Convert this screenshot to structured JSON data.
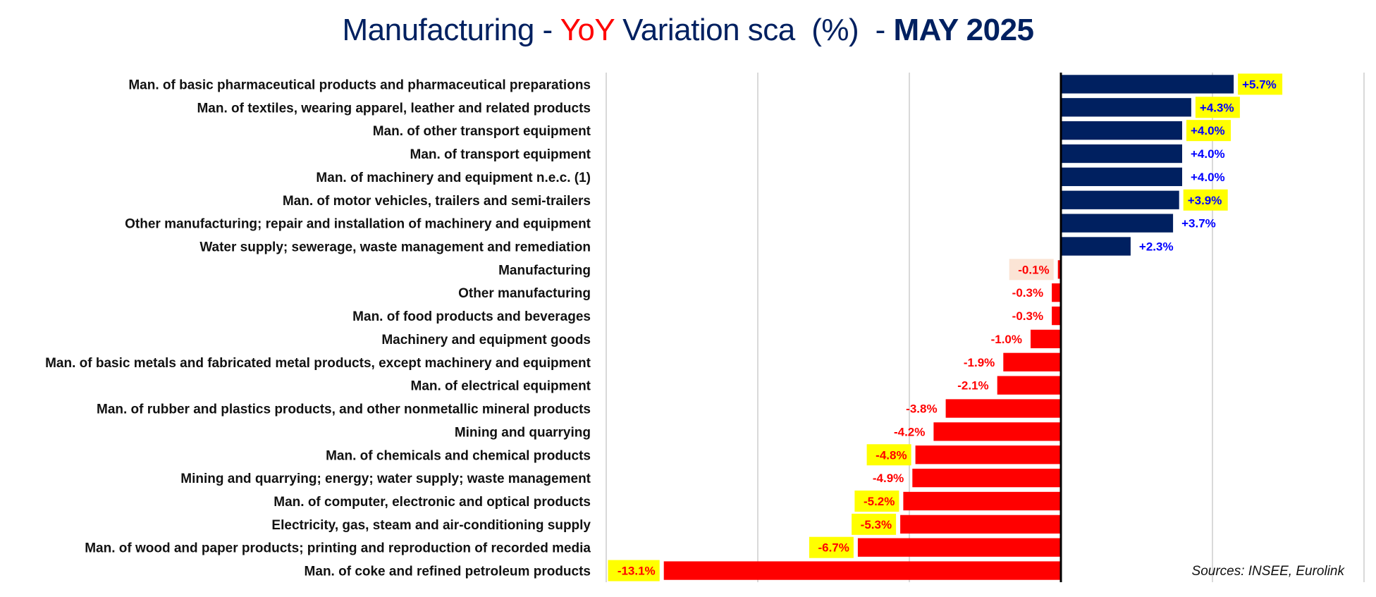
{
  "title": {
    "part1": "Manufacturing - ",
    "part2": "YoY",
    "part3": " Variation sca  (%)  - ",
    "part4": "MAY 2025"
  },
  "source": "Sources: INSEE, Eurolink",
  "colors": {
    "positive_bar": "#002060",
    "negative_bar": "#ff0000",
    "positive_label": "#0000ff",
    "negative_label": "#ff0000",
    "highlight": "#ffff00",
    "highlight_soft": "#fbe4d5",
    "gridline": "#d9d9d9",
    "axis": "#000000"
  },
  "chart_data": {
    "type": "bar",
    "orientation": "horizontal",
    "title": "Manufacturing - YoY Variation sca  (%)  - MAY 2025",
    "xlabel": "",
    "ylabel": "",
    "xlim": [
      -15,
      10
    ],
    "x_gridlines": [
      -15,
      -10,
      -5,
      0,
      5,
      10
    ],
    "tick_labels_shown": false,
    "grid": true,
    "legend": "none",
    "annotation": "Sources: INSEE, Eurolink",
    "categories": [
      "Man. of basic pharmaceutical products and pharmaceutical preparations",
      "Man. of textiles, wearing apparel, leather and related products",
      "Man. of other transport equipment",
      "Man. of transport equipment",
      "Man. of machinery and equipment n.e.c. (1)",
      "Man. of motor vehicles, trailers and semi-trailers",
      "Other manufacturing; repair and installation of machinery and equipment",
      "Water supply; sewerage, waste management and remediation",
      "Manufacturing",
      "Other manufacturing",
      "Man. of food products and beverages",
      "Machinery and equipment goods",
      "Man. of basic metals and fabricated metal products, except machinery and equipment",
      "Man. of electrical equipment",
      "Man. of rubber and plastics products, and other nonmetallic mineral products",
      "Mining and quarrying",
      "Man. of chemicals and chemical products",
      "Mining and quarrying; energy; water supply; waste management",
      "Man. of computer, electronic and optical products",
      "Electricity, gas, steam and air-conditioning supply",
      "Man. of wood and paper products; printing and reproduction of recorded media",
      "Man. of coke and refined petroleum products"
    ],
    "values": [
      5.7,
      4.3,
      4.0,
      4.0,
      4.0,
      3.9,
      3.7,
      2.3,
      -0.1,
      -0.3,
      -0.3,
      -1.0,
      -1.9,
      -2.1,
      -3.8,
      -4.2,
      -4.8,
      -4.9,
      -5.2,
      -5.3,
      -6.7,
      -13.1
    ],
    "data_labels": [
      "+5.7%",
      "+4.3%",
      "+4.0%",
      "+4.0%",
      "+4.0%",
      "+3.9%",
      "+3.7%",
      "+2.3%",
      "-0.1%",
      "-0.3%",
      "-0.3%",
      "-1.0%",
      "-1.9%",
      "-2.1%",
      "-3.8%",
      "-4.2%",
      "-4.8%",
      "-4.9%",
      "-5.2%",
      "-5.3%",
      "-6.7%",
      "-13.1%"
    ],
    "label_highlight": [
      "yellow",
      "yellow",
      "yellow",
      "none",
      "none",
      "yellow",
      "none",
      "none",
      "soft",
      "none",
      "none",
      "none",
      "none",
      "none",
      "none",
      "none",
      "yellow",
      "none",
      "yellow",
      "yellow",
      "yellow",
      "yellow"
    ]
  }
}
